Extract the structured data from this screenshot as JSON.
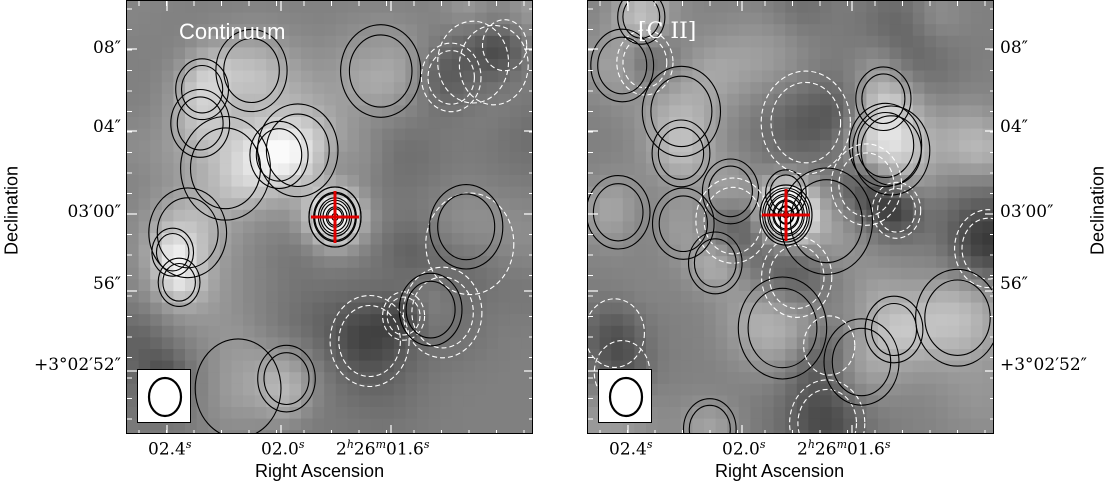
{
  "chart_data": [
    {
      "type": "heatmap",
      "panel_label": "Continuum",
      "xlabel": "Right Ascension",
      "ylabel": "Declination",
      "x_ticks": [
        {
          "main": "02.4",
          "sup_s": "s"
        },
        {
          "main": "02.0",
          "sup_s": "s"
        },
        {
          "main": "2",
          "sup_h": "h",
          "mid": "26",
          "sup_m": "m",
          "tail": "01.6",
          "sup_s": "s"
        }
      ],
      "y_ticks": [
        "08″",
        "04″",
        "03′00″",
        "56″",
        "+3°02′52″"
      ],
      "colormap": "grayscale",
      "contours": "solid positive, dashed negative",
      "marker": "red cross at source center",
      "beam": "ellipse lower-left"
    },
    {
      "type": "heatmap",
      "panel_label": "[C II]",
      "xlabel": "Right Ascension",
      "ylabel": "Declination",
      "x_ticks": [
        {
          "main": "02.4",
          "sup_s": "s"
        },
        {
          "main": "02.0",
          "sup_s": "s"
        },
        {
          "main": "2",
          "sup_h": "h",
          "mid": "26",
          "sup_m": "m",
          "tail": "01.6",
          "sup_s": "s"
        }
      ],
      "y_ticks": [
        "08″",
        "04″",
        "03′00″",
        "56″",
        "+3°02′52″"
      ],
      "colormap": "grayscale",
      "contours": "solid positive, dashed negative",
      "marker": "red cross at source center",
      "beam": "ellipse lower-left"
    }
  ],
  "colors": {
    "marker": "#e00000",
    "contour_pos": "#000000",
    "contour_neg": "#ffffff"
  }
}
